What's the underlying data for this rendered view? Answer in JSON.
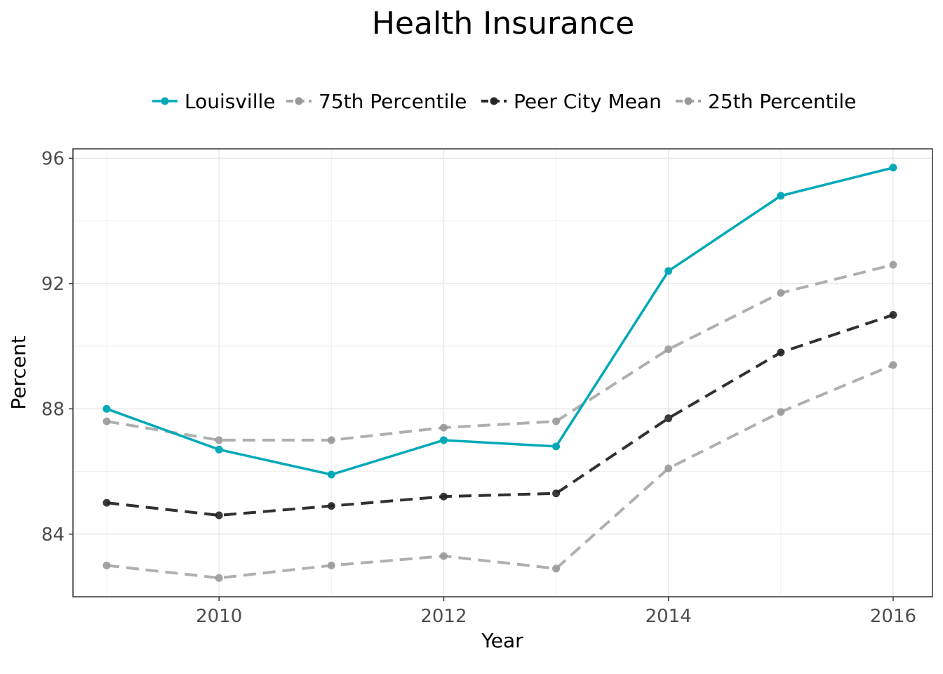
{
  "chart_data": {
    "type": "line",
    "title": "Health Insurance",
    "xlabel": "Year",
    "ylabel": "Percent",
    "x": [
      2009,
      2010,
      2011,
      2012,
      2013,
      2014,
      2015,
      2016
    ],
    "xlim": [
      2008.7,
      2016.35
    ],
    "ylim": [
      82,
      96.3
    ],
    "xticks": [
      2010,
      2012,
      2014,
      2016
    ],
    "yticks": [
      84,
      88,
      92,
      96
    ],
    "grid": true,
    "legend_position": "top",
    "series": [
      {
        "name": "Louisville",
        "color": "#00a9b7",
        "dash": "solid",
        "values": [
          88.0,
          86.7,
          85.9,
          87.0,
          86.8,
          92.4,
          94.8,
          95.7
        ]
      },
      {
        "name": "75th Percentile",
        "color": "#a6a6a6",
        "dash": "dashed",
        "values": [
          87.6,
          87.0,
          87.0,
          87.4,
          87.6,
          89.9,
          91.7,
          92.6
        ]
      },
      {
        "name": "Peer City Mean",
        "color": "#262626",
        "dash": "dashed",
        "values": [
          85.0,
          84.6,
          84.9,
          85.2,
          85.3,
          87.7,
          89.8,
          91.0
        ]
      },
      {
        "name": "25th Percentile",
        "color": "#a6a6a6",
        "dash": "dashed",
        "values": [
          83.0,
          82.6,
          83.0,
          83.3,
          82.9,
          86.1,
          87.9,
          89.4
        ]
      }
    ]
  }
}
